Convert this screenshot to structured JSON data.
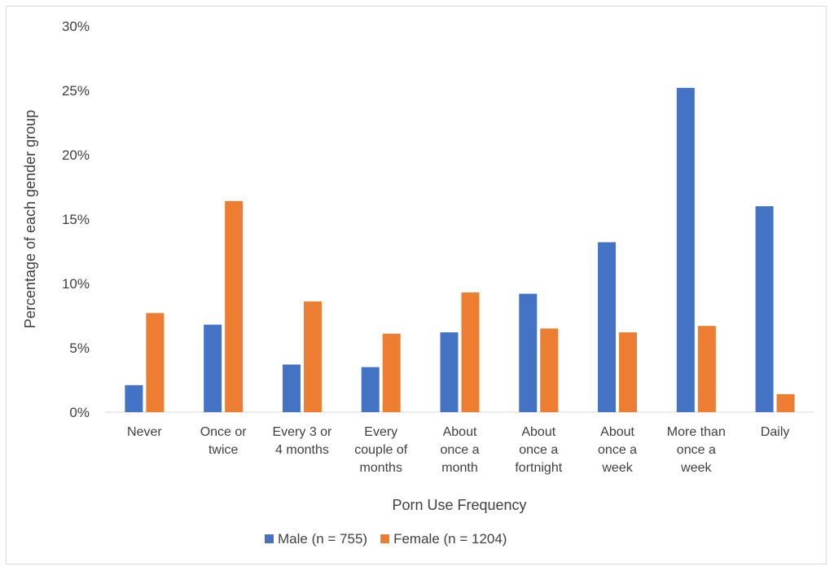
{
  "chart_data": {
    "type": "bar",
    "title": "",
    "xlabel": "Porn Use Frequency",
    "ylabel": "Percentage of each gender group",
    "ylim": [
      0,
      30
    ],
    "yticks": [
      "0%",
      "5%",
      "10%",
      "15%",
      "20%",
      "25%",
      "30%"
    ],
    "grid": false,
    "legend_position": "bottom",
    "categories": [
      [
        "Never"
      ],
      [
        "Once or",
        "twice"
      ],
      [
        "Every 3 or",
        "4 months"
      ],
      [
        "Every",
        "couple of",
        "months"
      ],
      [
        "About",
        "once a",
        "month"
      ],
      [
        "About",
        "once a",
        "fortnight"
      ],
      [
        "About",
        "once a",
        "week"
      ],
      [
        "More than",
        "once a",
        "week"
      ],
      [
        "Daily"
      ]
    ],
    "series": [
      {
        "name": "Male (n = 755)",
        "color": "#4472c4",
        "values": [
          2.1,
          6.8,
          3.7,
          3.5,
          6.2,
          9.2,
          13.2,
          25.2,
          16.0
        ]
      },
      {
        "name": "Female (n = 1204)",
        "color": "#ed7d31",
        "values": [
          7.7,
          16.4,
          8.6,
          6.1,
          9.3,
          6.5,
          6.2,
          6.7,
          1.4
        ]
      }
    ]
  }
}
